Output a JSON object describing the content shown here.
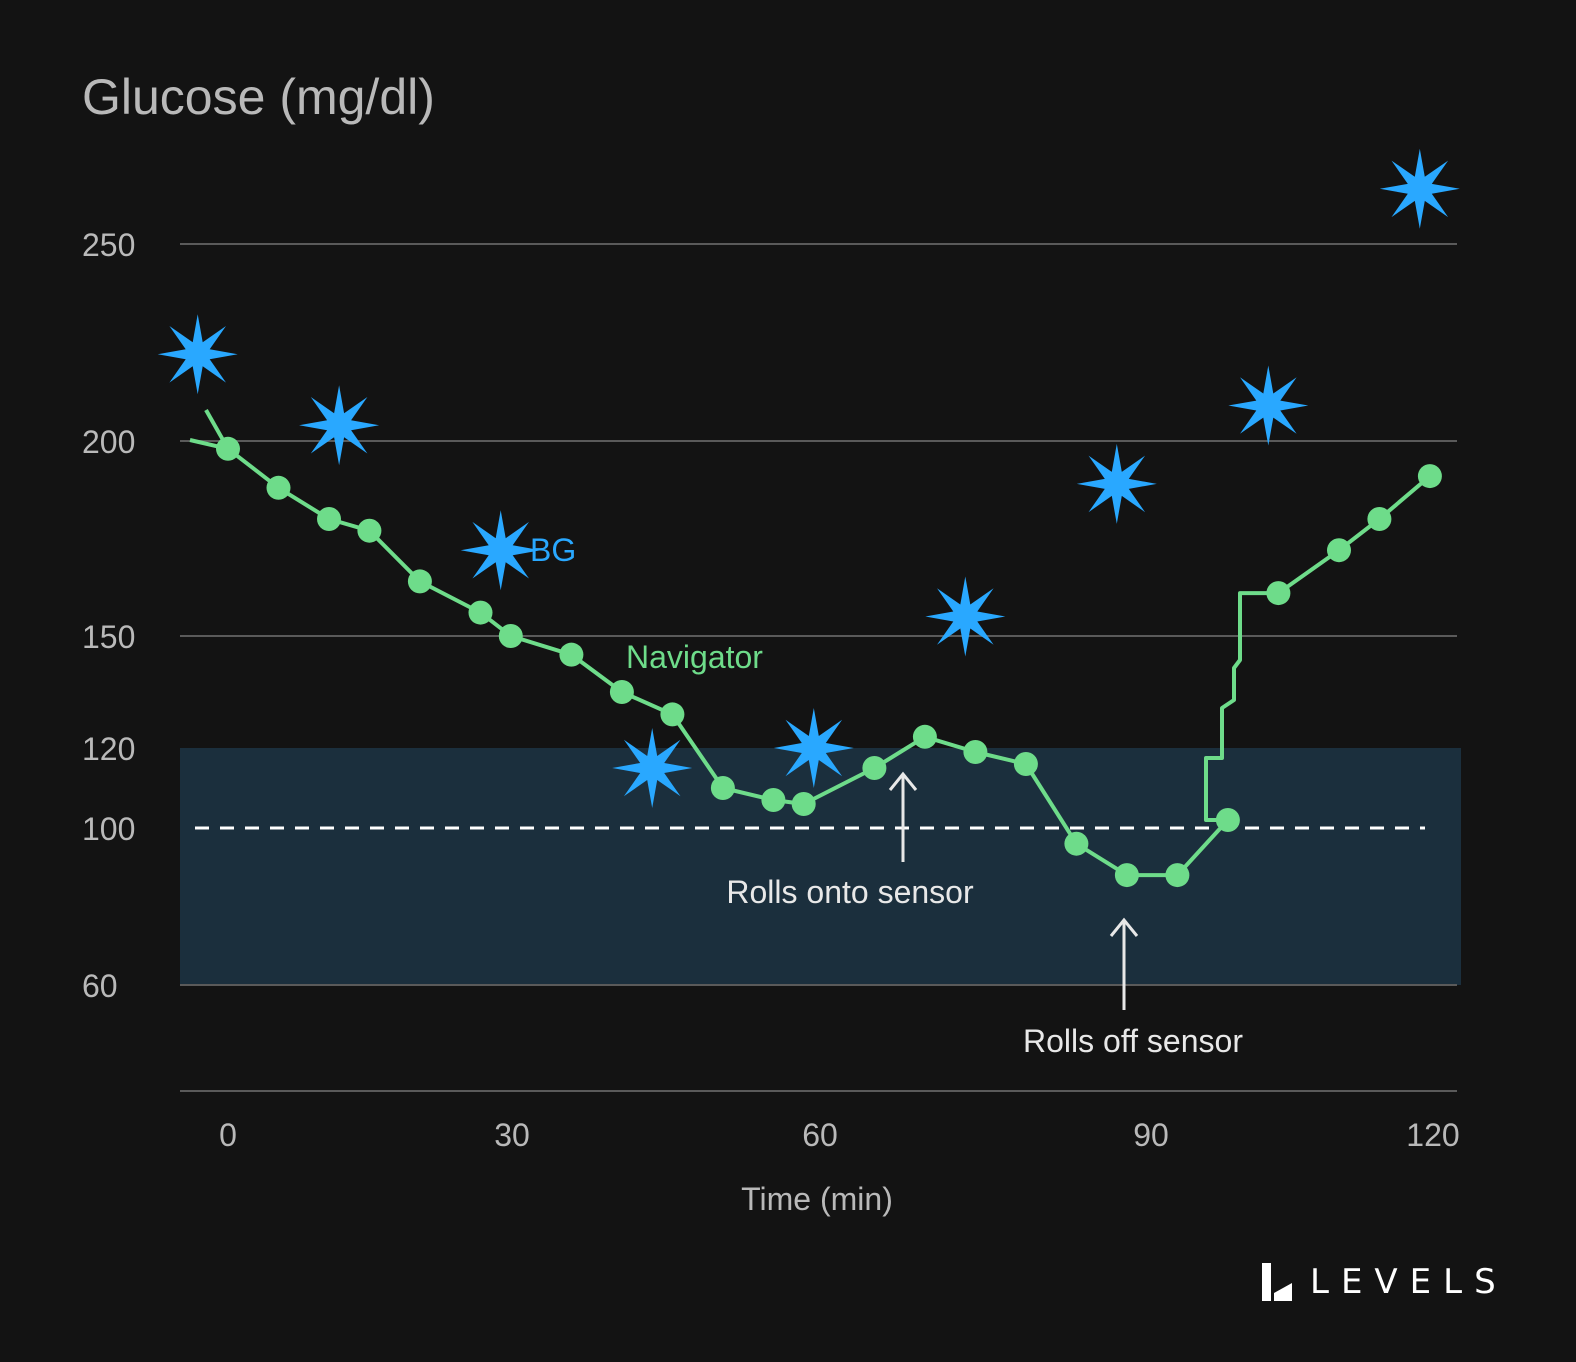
{
  "title": "Glucose (mg/dl)",
  "brand": "LEVELS",
  "colors": {
    "background": "#131313",
    "navigator": "#6edc8a",
    "bg": "#29a8ff",
    "target_band": "#1b2f3d",
    "grid": "#5a5a5a",
    "tick_text": "#b9b9b9"
  },
  "chart_data": {
    "type": "line",
    "title": "Glucose (mg/dl)",
    "xlabel": "Time (min)",
    "ylabel": "",
    "x_ticks": [
      "0",
      "30",
      "60",
      "90",
      "120"
    ],
    "y_ticks": [
      "60",
      "100",
      "120",
      "150",
      "200",
      "250"
    ],
    "y_scale": "nonlinear (ticks not evenly spaced)",
    "xlim": [
      -5,
      125
    ],
    "target_range": [
      60,
      120
    ],
    "reference_line": {
      "y": 100,
      "style": "dashed"
    },
    "grid": "horizontal",
    "series": [
      {
        "name": "Navigator",
        "marker": "circle",
        "points": [
          [
            0,
            198
          ],
          [
            5,
            188
          ],
          [
            10,
            180
          ],
          [
            14,
            177
          ],
          [
            19,
            164
          ],
          [
            25,
            156
          ],
          [
            28,
            150
          ],
          [
            34,
            145
          ],
          [
            39,
            135
          ],
          [
            44,
            129
          ],
          [
            49,
            110
          ],
          [
            54,
            107
          ],
          [
            57,
            106
          ],
          [
            64,
            115
          ],
          [
            69,
            123
          ],
          [
            74,
            119
          ],
          [
            79,
            116
          ],
          [
            84,
            96
          ],
          [
            89,
            88
          ],
          [
            94,
            88
          ],
          [
            99,
            102
          ],
          [
            104,
            161
          ],
          [
            110,
            172
          ],
          [
            114,
            180
          ],
          [
            119,
            191
          ]
        ]
      },
      {
        "name": "BG",
        "marker": "star",
        "points": [
          [
            -3,
            222
          ],
          [
            11,
            204
          ],
          [
            27,
            172
          ],
          [
            42,
            115
          ],
          [
            58,
            120
          ],
          [
            73,
            155
          ],
          [
            88,
            189
          ],
          [
            103,
            209
          ],
          [
            118,
            264
          ]
        ]
      }
    ],
    "annotations": [
      {
        "text": "Rolls onto sensor",
        "x": 71,
        "y": 123
      },
      {
        "text": "Rolls off sensor",
        "x": 91,
        "y": 88
      }
    ]
  }
}
